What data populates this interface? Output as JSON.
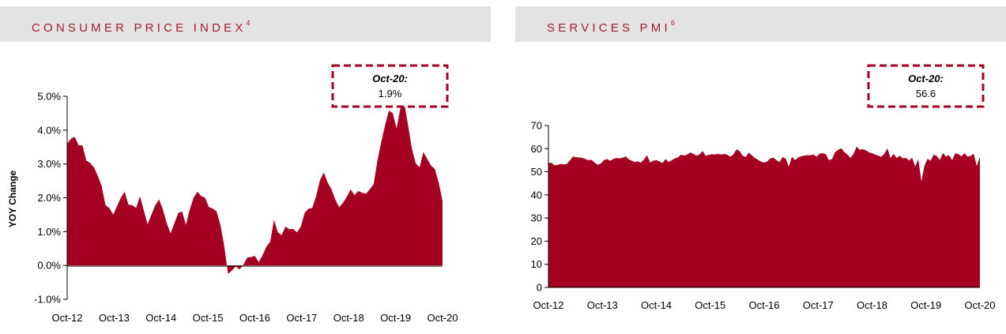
{
  "colors": {
    "fill": "#a50021",
    "header_text": "#a51c30",
    "header_bg": "#e3e3e3",
    "callout_border": "#a50021"
  },
  "chart_data": [
    {
      "type": "area",
      "title": "CONSUMER PRICE INDEX",
      "title_superscript": "4",
      "ylabel": "YOY Change",
      "ylim": [
        -0.01,
        0.05
      ],
      "yticks": [
        -0.01,
        0,
        0.01,
        0.02,
        0.03,
        0.04,
        0.05
      ],
      "ytick_labels": [
        "-1.0%",
        "0.0%",
        "1.0%",
        "2.0%",
        "3.0%",
        "4.0%",
        "5.0%"
      ],
      "xtick_labels": [
        "Oct-12",
        "Oct-13",
        "Oct-14",
        "Oct-15",
        "Oct-16",
        "Oct-17",
        "Oct-18",
        "Oct-19",
        "Oct-20"
      ],
      "x_start": "Oct-12",
      "x_end": "Oct-20",
      "callout": {
        "label": "Oct-20:",
        "value": "1.9%"
      },
      "series": [
        {
          "values": [
            0.036,
            0.0375,
            0.038,
            0.0355,
            0.0355,
            0.031,
            0.0303,
            0.029,
            0.0265,
            0.0235,
            0.0178,
            0.017,
            0.015,
            0.0175,
            0.02,
            0.0218,
            0.018,
            0.0178,
            0.017,
            0.0205,
            0.0163,
            0.0122,
            0.015,
            0.0178,
            0.0195,
            0.0165,
            0.0125,
            0.0095,
            0.0125,
            0.0155,
            0.016,
            0.012,
            0.0165,
            0.02,
            0.0218,
            0.0205,
            0.02,
            0.0173,
            0.0168,
            0.016,
            0.012,
            0.0058,
            -0.0025,
            -0.0015,
            -0.0003,
            -0.0012,
            0.0002,
            0.0023,
            0.0025,
            0.0028,
            0.001,
            0.003,
            0.0055,
            0.007,
            0.0135,
            0.0098,
            0.009,
            0.0115,
            0.0107,
            0.0108,
            0.0098,
            0.0115,
            0.0155,
            0.0168,
            0.017,
            0.0205,
            0.0252,
            0.0275,
            0.0245,
            0.0225,
            0.0195,
            0.0172,
            0.0185,
            0.0203,
            0.0225,
            0.0208,
            0.022,
            0.0215,
            0.0212,
            0.0225,
            0.024,
            0.031,
            0.0365,
            0.0415,
            0.0458,
            0.045,
            0.0405,
            0.0465,
            0.048,
            0.0415,
            0.0345,
            0.0302,
            0.029,
            0.0335,
            0.0315,
            0.0295,
            0.0285,
            0.0245,
            0.019
          ]
        }
      ]
    },
    {
      "type": "area",
      "title": "SERVICES PMI",
      "title_superscript": "6",
      "ylabel": "",
      "ylim": [
        0,
        70
      ],
      "yticks": [
        0,
        10,
        20,
        30,
        40,
        50,
        60,
        70
      ],
      "ytick_labels": [
        "0",
        "10",
        "20",
        "30",
        "40",
        "50",
        "60",
        "70"
      ],
      "xtick_labels": [
        "Oct-12",
        "Oct-13",
        "Oct-14",
        "Oct-15",
        "Oct-16",
        "Oct-17",
        "Oct-18",
        "Oct-19",
        "Oct-20"
      ],
      "x_start": "Oct-12",
      "x_end": "Oct-20",
      "callout": {
        "label": "Oct-20:",
        "value": "56.6"
      },
      "series": [
        {
          "values": [
            53.8,
            53.9,
            52.8,
            53.0,
            53.4,
            53.2,
            53.4,
            55.0,
            56.6,
            56.3,
            56.2,
            56.0,
            55.5,
            55.0,
            55.2,
            54.0,
            53.0,
            53.6,
            55.0,
            55.5,
            54.8,
            55.5,
            56.0,
            55.8,
            56.0,
            56.7,
            55.5,
            54.8,
            54.2,
            54.5,
            54.0,
            55.3,
            57.2,
            54.0,
            54.8,
            55.0,
            54.5,
            53.8,
            55.5,
            54.2,
            55.0,
            55.8,
            56.2,
            57.4,
            57.0,
            57.5,
            58.3,
            57.8,
            57.0,
            57.5,
            59.0,
            57.0,
            57.3,
            57.6,
            57.5,
            57.8,
            57.5,
            57.7,
            57.4,
            56.5,
            57.5,
            59.7,
            59.0,
            57.0,
            56.4,
            58.3,
            57.1,
            56.0,
            55.2,
            54.4,
            54.0,
            54.5,
            55.8,
            56.1,
            55.0,
            54.2,
            56.4,
            55.7,
            52.2,
            56.5,
            55.0,
            56.2,
            56.7,
            57.0,
            57.2,
            57.1,
            57.5,
            56.5,
            57.9,
            58.0,
            57.6,
            55.0,
            55.5,
            58.5,
            59.5,
            60.2,
            58.5,
            57.5,
            56.0,
            57.8,
            60.9,
            59.5,
            59.8,
            59.3,
            58.4,
            58.0,
            57.5,
            57.0,
            56.5,
            57.8,
            60.1,
            55.9,
            57.8,
            56.0,
            57.0,
            55.8,
            56.0,
            54.9,
            56.1,
            52.3,
            55.5,
            45.9,
            52.6,
            55.6,
            54.8,
            57.4,
            56.8,
            55.1,
            58.1,
            56.6,
            57.2,
            55.0,
            58.0,
            57.7,
            56.7,
            58.1,
            56.5,
            56.9,
            57.8,
            52.4,
            56.6
          ]
        }
      ]
    }
  ]
}
